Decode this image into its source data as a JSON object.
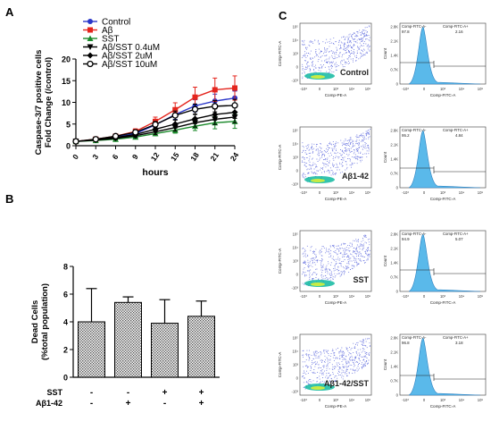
{
  "panels": {
    "a": "A",
    "b": "B",
    "c": "C"
  },
  "chart_data": [
    {
      "type": "line",
      "panel": "A",
      "xlabel": "hours",
      "ylabel": [
        "Caspase-3/7 positive cells",
        "Fold Change (/control)"
      ],
      "x": [
        0,
        3,
        6,
        9,
        12,
        15,
        18,
        21,
        24
      ],
      "xticks": [
        "0",
        "3",
        "6",
        "9",
        "12",
        "15",
        "18",
        "21",
        "24"
      ],
      "yticks": [
        "0",
        "5",
        "10",
        "15",
        "20"
      ],
      "xlim": [
        0,
        24
      ],
      "ylim": [
        0,
        20
      ],
      "legend_position": "top-left",
      "series": [
        {
          "name": "Control",
          "color": "#2a36c9",
          "marker": "circle",
          "values": [
            1,
            1.4,
            2.0,
            2.8,
            4.8,
            7.2,
            9.2,
            10.3,
            11.0
          ],
          "errors": [
            0.1,
            0.2,
            0.3,
            0.5,
            0.8,
            1.1,
            1.4,
            1.6,
            1.6
          ]
        },
        {
          "name": "Aβ",
          "color": "#e4251d",
          "marker": "square",
          "values": [
            1,
            1.5,
            2.2,
            3.3,
            5.6,
            8.3,
            11.2,
            12.9,
            13.3
          ],
          "errors": [
            0.1,
            0.2,
            0.4,
            0.6,
            1.0,
            1.6,
            2.3,
            2.7,
            2.8
          ]
        },
        {
          "name": "SST",
          "color": "#1c8a2c",
          "marker": "triangle",
          "values": [
            1,
            1.2,
            1.5,
            2.0,
            2.8,
            3.6,
            4.5,
            5.3,
            5.6
          ],
          "errors": [
            0.1,
            0.2,
            0.3,
            0.4,
            0.5,
            0.7,
            1.0,
            1.4,
            1.6
          ]
        },
        {
          "name": "Aβ/SST 0.4uM",
          "color": "#000000",
          "marker": "triangle-down",
          "values": [
            1,
            1.3,
            1.7,
            2.3,
            3.2,
            4.2,
            5.3,
            6.1,
            6.6
          ],
          "errors": [
            0.1,
            0.2,
            0.3,
            0.4,
            0.6,
            0.8,
            1.0,
            1.2,
            1.3
          ]
        },
        {
          "name": "Aβ/SST 2uM",
          "color": "#000000",
          "marker": "diamond",
          "values": [
            1,
            1.4,
            1.9,
            2.6,
            3.8,
            5.0,
            6.2,
            7.2,
            7.7
          ],
          "errors": [
            0.1,
            0.2,
            0.3,
            0.5,
            0.7,
            0.9,
            1.1,
            1.3,
            1.4
          ]
        },
        {
          "name": "Aβ/SST 10uM",
          "color": "#000000",
          "marker": "circle-open",
          "values": [
            1,
            1.5,
            2.2,
            3.1,
            4.9,
            7.0,
            8.4,
            9.1,
            9.3
          ],
          "errors": [
            0.1,
            0.2,
            0.3,
            0.5,
            0.7,
            1.0,
            1.2,
            1.3,
            1.4
          ]
        }
      ]
    },
    {
      "type": "bar",
      "panel": "B",
      "ylabel": [
        "Dead Cells",
        "(%total population)"
      ],
      "yticks": [
        "0",
        "2",
        "4",
        "6",
        "8"
      ],
      "ylim": [
        0,
        8
      ],
      "values": [
        4.0,
        5.4,
        3.9,
        4.4
      ],
      "errors": [
        2.4,
        0.4,
        1.7,
        1.1
      ],
      "row_labels": [
        "SST",
        "Aβ1-42"
      ],
      "rows": [
        [
          "-",
          "-",
          "+",
          "+"
        ],
        [
          "-",
          "+",
          "-",
          "+"
        ]
      ]
    },
    {
      "type": "scatter",
      "panel": "C",
      "rows": [
        {
          "label": "Control",
          "histogram_stats": [
            "97.8",
            "2.16"
          ]
        },
        {
          "label": "Aβ1-42",
          "histogram_stats": [
            "95.2",
            "4.84"
          ]
        },
        {
          "label": "SST",
          "histogram_stats": [
            "94.9",
            "5.07"
          ]
        },
        {
          "label": "Aβ1-42/SST",
          "histogram_stats": [
            "96.8",
            "3.18"
          ]
        }
      ],
      "scatter_xlabel": "Comp-PE-A",
      "scatter_ylabel": "Comp-FITC-A",
      "scatter_ticks": [
        "-10³",
        "0",
        "10³",
        "10⁴",
        "10⁵"
      ],
      "hist_header": [
        "Comp-FITC-A-",
        "Comp-FITC-A+"
      ],
      "hist_xlabel": "Comp-FITC-A",
      "hist_ylabel": "Count",
      "hist_xticks": [
        "-10³",
        "0",
        "10³",
        "10⁴",
        "10⁵"
      ],
      "hist_yticks": [
        "0",
        "0.7K",
        "1.4K",
        "2.1K",
        "2.8K"
      ],
      "colors": {
        "dots": "#3b49d6",
        "dense": "#11b8a0",
        "hist_fill": "#5ab9ea",
        "hist_stroke": "#2a7fbf"
      }
    }
  ]
}
